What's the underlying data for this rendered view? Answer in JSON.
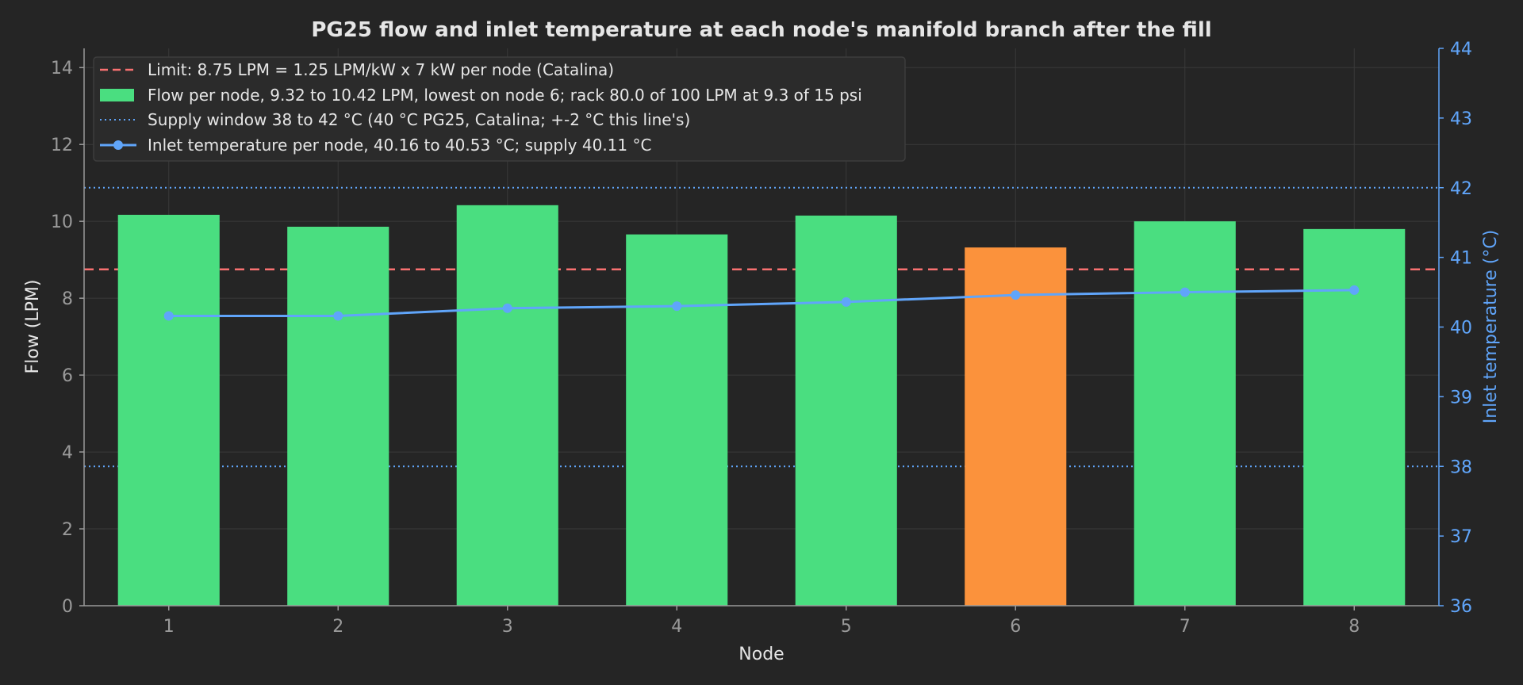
{
  "chart_data": {
    "type": "bar",
    "title": "PG25 flow and inlet temperature at each node's manifold branch after the fill",
    "xlabel": "Node",
    "ylabel": "Flow (LPM)",
    "y2label": "Inlet temperature (°C)",
    "categories": [
      "1",
      "2",
      "3",
      "4",
      "5",
      "6",
      "7",
      "8"
    ],
    "ylim": [
      0,
      14.5
    ],
    "y_ticks": [
      0,
      2,
      4,
      6,
      8,
      10,
      12,
      14
    ],
    "y2lim": [
      36,
      44
    ],
    "y2_ticks": [
      36,
      37,
      38,
      39,
      40,
      41,
      42,
      43,
      44
    ],
    "grid": true,
    "legend_position": "top-left",
    "series": [
      {
        "name": "Flow per node, 9.32 to 10.42 LPM, lowest on node 6; rack 80.0 of 100 LPM at 9.3 of 15 psi",
        "kind": "bar",
        "axis": "left",
        "values": [
          10.17,
          9.86,
          10.42,
          9.66,
          10.15,
          9.32,
          10.0,
          9.8
        ],
        "color": "#4ade80",
        "highlight_index": 5,
        "highlight_color": "#fb923c"
      },
      {
        "name": "Inlet temperature per node, 40.16 to 40.53 °C; supply 40.11 °C",
        "kind": "line",
        "axis": "right",
        "values": [
          40.16,
          40.16,
          40.27,
          40.3,
          40.36,
          40.46,
          40.5,
          40.53
        ],
        "color": "#60a5fa"
      }
    ],
    "reference_lines": [
      {
        "name": "Limit: 8.75 LPM = 1.25 LPM/kW x 7 kW per node (Catalina)",
        "axis": "left",
        "value": 8.75,
        "style": "dashed",
        "color": "#f87171"
      },
      {
        "name": "Supply window 38 to 42 °C (40 °C PG25, Catalina; +-2 °C this line's)",
        "axis": "right",
        "values": [
          38,
          42
        ],
        "style": "dotted",
        "color": "#60a5fa"
      }
    ]
  }
}
